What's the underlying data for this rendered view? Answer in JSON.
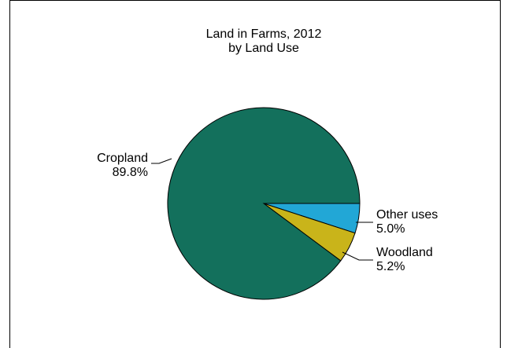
{
  "chart_data": {
    "type": "pie",
    "title": "Land in Farms, 2012",
    "subtitle": "by Land Use",
    "slices": [
      {
        "label": "Other uses",
        "value": 5.0,
        "value_label": "5.0%",
        "color": "#22a7d6"
      },
      {
        "label": "Woodland",
        "value": 5.2,
        "value_label": "5.2%",
        "color": "#c9b41a"
      },
      {
        "label": "Cropland",
        "value": 89.8,
        "value_label": "89.8%",
        "color": "#13705c"
      }
    ],
    "start": "3 o'clock",
    "direction": "clockwise",
    "legend": "none",
    "labels": "outside with leader lines"
  }
}
